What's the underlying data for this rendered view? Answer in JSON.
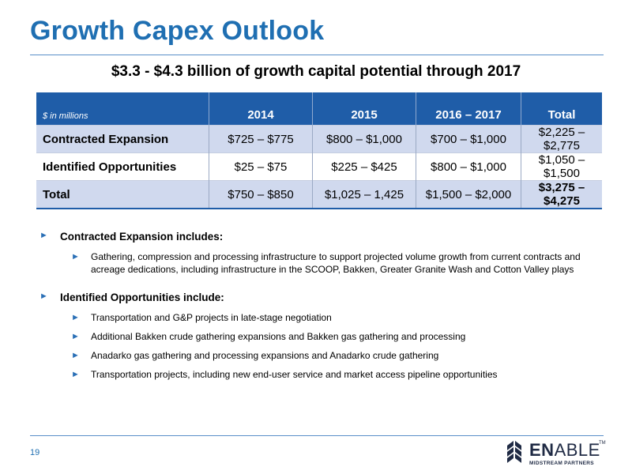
{
  "header": {
    "title": "Growth Capex Outlook",
    "subtitle": "$3.3 - $4.3 billion of growth capital potential through 2017"
  },
  "table": {
    "units_label": "$ in millions",
    "columns": [
      "2014",
      "2015",
      "2016 – 2017",
      "Total"
    ],
    "rows": [
      {
        "label": "Contracted Expansion",
        "values": [
          "$725 – $775",
          "$800 – $1,000",
          "$700 – $1,000",
          "$2,225 – $2,775"
        ]
      },
      {
        "label": "Identified Opportunities",
        "values": [
          "$25 – $75",
          "$225 – $425",
          "$800 – $1,000",
          "$1,050 – $1,500"
        ]
      },
      {
        "label": "Total",
        "values": [
          "$750 – $850",
          "$1,025 – 1,425",
          "$1,500 – $2,000",
          "$3,275 – $4,275"
        ]
      }
    ]
  },
  "bullets": [
    {
      "text": "Contracted Expansion includes:",
      "sub": [
        "Gathering, compression and processing infrastructure to support projected volume growth from current contracts and acreage dedications, including infrastructure in the SCOOP, Bakken, Greater Granite Wash and Cotton Valley plays"
      ]
    },
    {
      "text": "Identified Opportunities include:",
      "sub": [
        "Transportation and G&P projects in late-stage negotiation",
        "Additional Bakken crude gathering expansions and Bakken gas gathering and processing",
        "Anadarko gas gathering and processing expansions and Anadarko crude gathering",
        "Transportation projects, including new end-user service and market access pipeline opportunities"
      ]
    }
  ],
  "footer": {
    "page_number": "19",
    "logo": {
      "word_bold": "EN",
      "word_thin": "ABLE",
      "tm": "TM",
      "tagline": "MIDSTREAM PARTNERS"
    }
  },
  "colors": {
    "title_blue": "#1f6fb2",
    "header_fill": "#1f5da8",
    "row_shade": "#d0d9ee",
    "bullet_arrow": "#2a6fb6"
  },
  "icons": {
    "bullet": "triangle-right-arrow-icon",
    "logo_mark": "enable-chevron-logo-icon"
  }
}
